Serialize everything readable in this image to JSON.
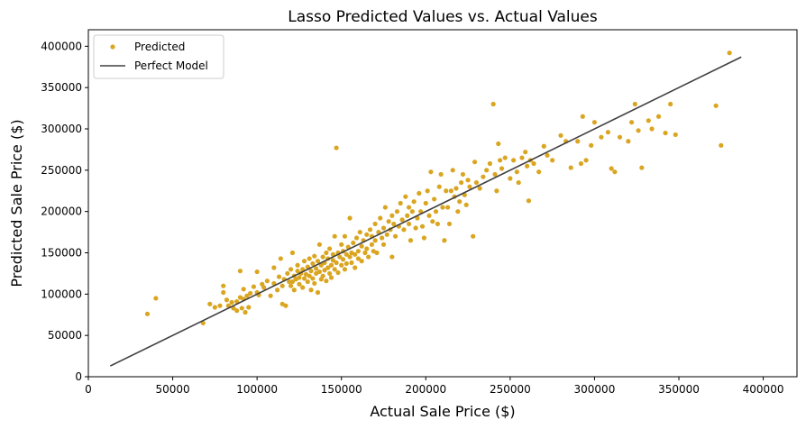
{
  "chart_data": {
    "type": "scatter",
    "title": "Lasso Predicted Values vs. Actual Values",
    "xlabel": "Actual Sale Price ($)",
    "ylabel": "Predicted Sale Price ($)",
    "xlim": [
      0,
      420000
    ],
    "ylim": [
      0,
      420000
    ],
    "xticks": [
      0,
      50000,
      100000,
      150000,
      200000,
      250000,
      300000,
      350000,
      400000
    ],
    "yticks": [
      0,
      50000,
      100000,
      150000,
      200000,
      250000,
      300000,
      350000,
      400000
    ],
    "xtick_labels": [
      "0",
      "50000",
      "100000",
      "150000",
      "200000",
      "250000",
      "300000",
      "350000",
      "400000"
    ],
    "ytick_labels": [
      "0",
      "50000",
      "100000",
      "150000",
      "200000",
      "250000",
      "300000",
      "350000",
      "400000"
    ],
    "grid": false,
    "legend_position": "top-left",
    "series": [
      {
        "name": "Predicted",
        "kind": "scatter",
        "color": "#daa520",
        "points": [
          [
            35000,
            76000
          ],
          [
            40000,
            95000
          ],
          [
            68000,
            65000
          ],
          [
            72000,
            88000
          ],
          [
            75000,
            84000
          ],
          [
            78000,
            86000
          ],
          [
            80000,
            110000
          ],
          [
            80000,
            102000
          ],
          [
            82000,
            93000
          ],
          [
            83000,
            86000
          ],
          [
            85000,
            90000
          ],
          [
            86000,
            83000
          ],
          [
            88000,
            91000
          ],
          [
            88000,
            80000
          ],
          [
            90000,
            96000
          ],
          [
            90000,
            128000
          ],
          [
            91000,
            83000
          ],
          [
            92000,
            94000
          ],
          [
            92000,
            106000
          ],
          [
            93000,
            78000
          ],
          [
            94000,
            98000
          ],
          [
            95000,
            84000
          ],
          [
            96000,
            101000
          ],
          [
            98000,
            109000
          ],
          [
            100000,
            102000
          ],
          [
            100000,
            127000
          ],
          [
            101000,
            99000
          ],
          [
            103000,
            112000
          ],
          [
            104000,
            108000
          ],
          [
            106000,
            116000
          ],
          [
            108000,
            98000
          ],
          [
            110000,
            113000
          ],
          [
            110000,
            132000
          ],
          [
            112000,
            105000
          ],
          [
            113000,
            121000
          ],
          [
            114000,
            143000
          ],
          [
            115000,
            88000
          ],
          [
            115000,
            110000
          ],
          [
            116000,
            118000
          ],
          [
            117000,
            86000
          ],
          [
            118000,
            125000
          ],
          [
            119000,
            115000
          ],
          [
            120000,
            110000
          ],
          [
            120000,
            130000
          ],
          [
            121000,
            115000
          ],
          [
            121000,
            150000
          ],
          [
            122000,
            122000
          ],
          [
            122000,
            105000
          ],
          [
            123000,
            118000
          ],
          [
            124000,
            128000
          ],
          [
            124000,
            135000
          ],
          [
            125000,
            112000
          ],
          [
            125000,
            120000
          ],
          [
            126000,
            125000
          ],
          [
            127000,
            108000
          ],
          [
            127000,
            130000
          ],
          [
            128000,
            119000
          ],
          [
            128000,
            140000
          ],
          [
            129000,
            124000
          ],
          [
            130000,
            115000
          ],
          [
            130000,
            133000
          ],
          [
            131000,
            122000
          ],
          [
            131000,
            143000
          ],
          [
            132000,
            105000
          ],
          [
            132000,
            128000
          ],
          [
            133000,
            119000
          ],
          [
            133000,
            137000
          ],
          [
            134000,
            113000
          ],
          [
            134000,
            146000
          ],
          [
            135000,
            125000
          ],
          [
            135000,
            131000
          ],
          [
            136000,
            140000
          ],
          [
            136000,
            102000
          ],
          [
            137000,
            127000
          ],
          [
            137000,
            160000
          ],
          [
            138000,
            118000
          ],
          [
            138000,
            135000
          ],
          [
            139000,
            145000
          ],
          [
            139000,
            122000
          ],
          [
            140000,
            129000
          ],
          [
            140000,
            138000
          ],
          [
            141000,
            150000
          ],
          [
            141000,
            116000
          ],
          [
            142000,
            132000
          ],
          [
            142000,
            143000
          ],
          [
            143000,
            125000
          ],
          [
            143000,
            155000
          ],
          [
            144000,
            135000
          ],
          [
            144000,
            120000
          ],
          [
            145000,
            141000
          ],
          [
            145000,
            148000
          ],
          [
            146000,
            130000
          ],
          [
            146000,
            170000
          ],
          [
            147000,
            277000
          ],
          [
            147000,
            138000
          ],
          [
            148000,
            150000
          ],
          [
            148000,
            126000
          ],
          [
            149000,
            145000
          ],
          [
            150000,
            160000
          ],
          [
            150000,
            135000
          ],
          [
            151000,
            142000
          ],
          [
            151000,
            152000
          ],
          [
            152000,
            130000
          ],
          [
            152000,
            170000
          ],
          [
            153000,
            148000
          ],
          [
            153000,
            137000
          ],
          [
            154000,
            157000
          ],
          [
            155000,
            145000
          ],
          [
            155000,
            192000
          ],
          [
            156000,
            150000
          ],
          [
            156000,
            138000
          ],
          [
            157000,
            162000
          ],
          [
            158000,
            148000
          ],
          [
            158000,
            132000
          ],
          [
            159000,
            168000
          ],
          [
            160000,
            152000
          ],
          [
            160000,
            143000
          ],
          [
            161000,
            175000
          ],
          [
            162000,
            158000
          ],
          [
            162000,
            140000
          ],
          [
            163000,
            165000
          ],
          [
            164000,
            150000
          ],
          [
            165000,
            172000
          ],
          [
            165000,
            155000
          ],
          [
            166000,
            145000
          ],
          [
            167000,
            178000
          ],
          [
            168000,
            160000
          ],
          [
            168000,
            170000
          ],
          [
            169000,
            152000
          ],
          [
            170000,
            185000
          ],
          [
            170000,
            165000
          ],
          [
            171000,
            150000
          ],
          [
            172000,
            175000
          ],
          [
            173000,
            192000
          ],
          [
            174000,
            168000
          ],
          [
            175000,
            180000
          ],
          [
            175000,
            160000
          ],
          [
            176000,
            205000
          ],
          [
            177000,
            172000
          ],
          [
            178000,
            188000
          ],
          [
            179000,
            178000
          ],
          [
            180000,
            195000
          ],
          [
            180000,
            145000
          ],
          [
            181000,
            185000
          ],
          [
            182000,
            170000
          ],
          [
            183000,
            200000
          ],
          [
            184000,
            182000
          ],
          [
            185000,
            210000
          ],
          [
            186000,
            190000
          ],
          [
            187000,
            178000
          ],
          [
            188000,
            218000
          ],
          [
            189000,
            195000
          ],
          [
            190000,
            205000
          ],
          [
            190000,
            185000
          ],
          [
            191000,
            165000
          ],
          [
            192000,
            200000
          ],
          [
            193000,
            212000
          ],
          [
            194000,
            180000
          ],
          [
            195000,
            192000
          ],
          [
            196000,
            222000
          ],
          [
            197000,
            200000
          ],
          [
            198000,
            182000
          ],
          [
            199000,
            168000
          ],
          [
            200000,
            210000
          ],
          [
            201000,
            225000
          ],
          [
            202000,
            195000
          ],
          [
            203000,
            248000
          ],
          [
            204000,
            188000
          ],
          [
            205000,
            215000
          ],
          [
            206000,
            200000
          ],
          [
            207000,
            185000
          ],
          [
            208000,
            230000
          ],
          [
            209000,
            245000
          ],
          [
            210000,
            205000
          ],
          [
            211000,
            165000
          ],
          [
            212000,
            225000
          ],
          [
            213000,
            205000
          ],
          [
            214000,
            185000
          ],
          [
            215000,
            225000
          ],
          [
            216000,
            250000
          ],
          [
            217000,
            218000
          ],
          [
            218000,
            228000
          ],
          [
            219000,
            200000
          ],
          [
            220000,
            212000
          ],
          [
            221000,
            235000
          ],
          [
            222000,
            245000
          ],
          [
            223000,
            220000
          ],
          [
            224000,
            208000
          ],
          [
            225000,
            238000
          ],
          [
            226000,
            230000
          ],
          [
            228000,
            170000
          ],
          [
            229000,
            260000
          ],
          [
            230000,
            235000
          ],
          [
            232000,
            228000
          ],
          [
            234000,
            242000
          ],
          [
            236000,
            250000
          ],
          [
            238000,
            258000
          ],
          [
            240000,
            330000
          ],
          [
            241000,
            245000
          ],
          [
            242000,
            225000
          ],
          [
            243000,
            282000
          ],
          [
            244000,
            262000
          ],
          [
            245000,
            252000
          ],
          [
            247000,
            265000
          ],
          [
            250000,
            240000
          ],
          [
            252000,
            262000
          ],
          [
            254000,
            248000
          ],
          [
            255000,
            235000
          ],
          [
            257000,
            265000
          ],
          [
            259000,
            272000
          ],
          [
            260000,
            255000
          ],
          [
            261000,
            213000
          ],
          [
            262000,
            262000
          ],
          [
            264000,
            258000
          ],
          [
            267000,
            248000
          ],
          [
            270000,
            279000
          ],
          [
            272000,
            268000
          ],
          [
            275000,
            262000
          ],
          [
            280000,
            292000
          ],
          [
            283000,
            285000
          ],
          [
            286000,
            253000
          ],
          [
            290000,
            285000
          ],
          [
            292000,
            258000
          ],
          [
            293000,
            315000
          ],
          [
            295000,
            262000
          ],
          [
            298000,
            280000
          ],
          [
            300000,
            308000
          ],
          [
            304000,
            290000
          ],
          [
            308000,
            296000
          ],
          [
            310000,
            252000
          ],
          [
            312000,
            248000
          ],
          [
            315000,
            290000
          ],
          [
            320000,
            285000
          ],
          [
            322000,
            308000
          ],
          [
            324000,
            330000
          ],
          [
            326000,
            298000
          ],
          [
            328000,
            253000
          ],
          [
            332000,
            310000
          ],
          [
            334000,
            300000
          ],
          [
            338000,
            315000
          ],
          [
            342000,
            295000
          ],
          [
            345000,
            330000
          ],
          [
            348000,
            293000
          ],
          [
            372000,
            328000
          ],
          [
            375000,
            280000
          ],
          [
            380000,
            392000
          ]
        ]
      },
      {
        "name": "Perfect Model",
        "kind": "line",
        "color": "#404040",
        "points": [
          [
            13000,
            13000
          ],
          [
            387000,
            387000
          ]
        ]
      }
    ]
  }
}
